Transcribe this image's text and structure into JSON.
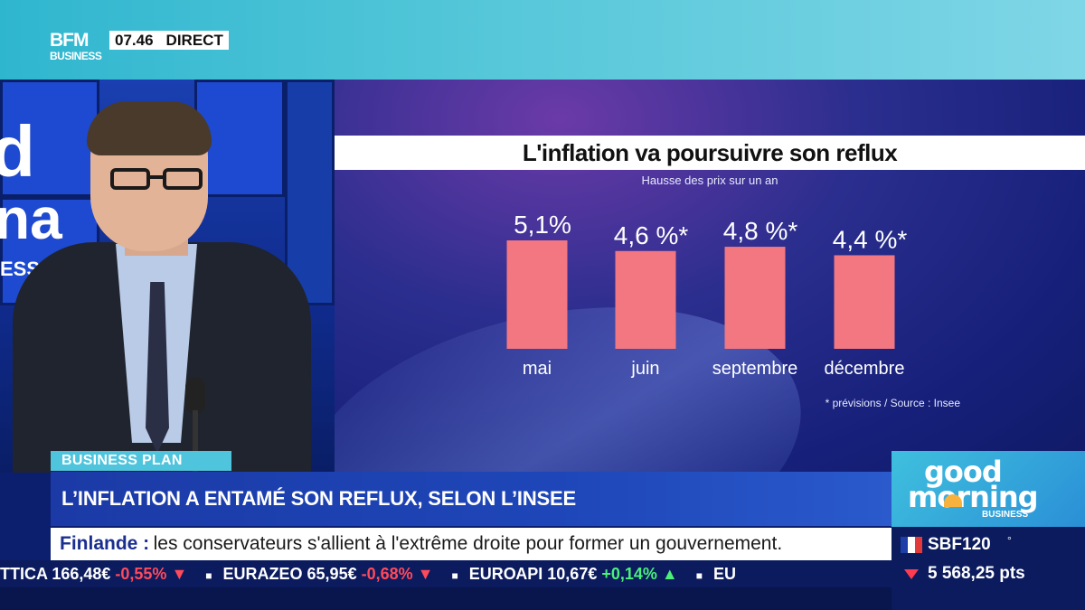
{
  "channel": {
    "time": "07.46",
    "live_label": "DIRECT"
  },
  "chart_data": {
    "type": "bar",
    "title": "L'inflation va poursuivre son reflux",
    "subtitle": "Hausse des prix sur un an",
    "categories": [
      "mai",
      "juin",
      "septembre",
      "décembre"
    ],
    "values": [
      5.1,
      4.6,
      4.8,
      4.4
    ],
    "value_labels": [
      "5,1%",
      "4,6 %*",
      "4,8 %*",
      "4,4 %*"
    ],
    "note": "* prévisions / Source : Insee",
    "bar_color": "#f27781",
    "ylim": [
      0,
      5.1
    ]
  },
  "lower_third": {
    "show_label": "BUSINESS PLAN",
    "headline": "L’INFLATION A ENTAMÉ SON REFLUX, SELON L’INSEE",
    "news_key": "Finlande :",
    "news_text": "les conservateurs s'allient à l'extrême droite pour former un gouvernement."
  },
  "ticker": [
    {
      "name": "TTICA",
      "price": "166,48€",
      "change": "-0,55%",
      "dir": "down"
    },
    {
      "name": "EURAZEO",
      "price": "65,95€",
      "change": "-0,68%",
      "dir": "down"
    },
    {
      "name": "EURОАPI",
      "price": "10,67€",
      "change": "+0,14%",
      "dir": "up"
    },
    {
      "name": "EU",
      "price": "",
      "change": "",
      "dir": ""
    }
  ],
  "show_logo": {
    "line1": "good",
    "line2": "morning",
    "line3": "BUSINESS"
  },
  "market_index": {
    "name": "SBF120",
    "marker": "°",
    "value": "5 568,25 pts",
    "direction": "down"
  },
  "colors": {
    "accent_cyan": "#4fc4dd",
    "bar_pink": "#f27781",
    "down_red": "#ff4a5a",
    "up_green": "#4bf07a"
  }
}
